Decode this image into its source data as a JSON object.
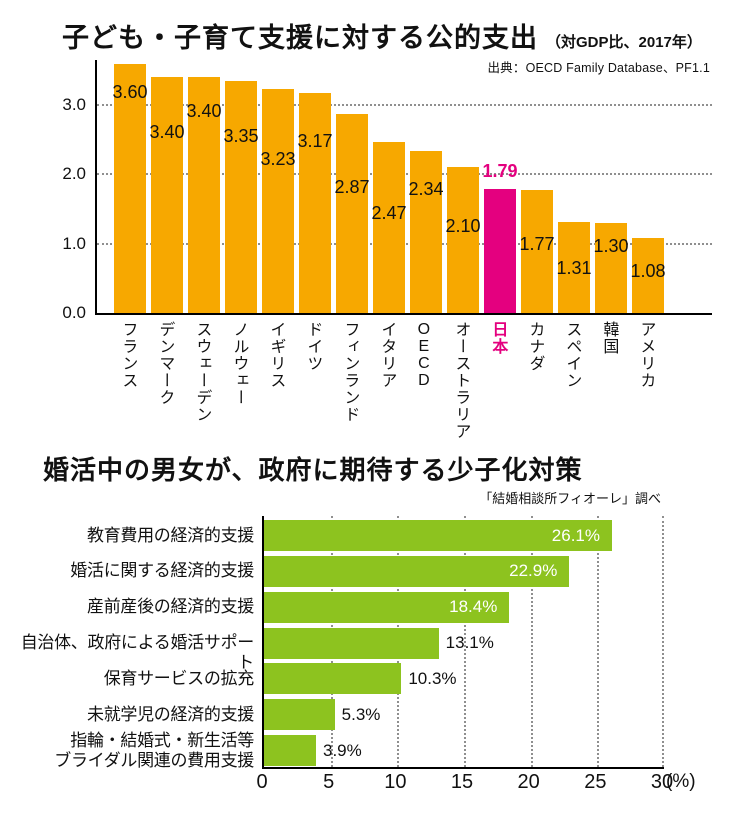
{
  "colors": {
    "bar_orange": "#F7A800",
    "bar_pink": "#E4007F",
    "bar_green": "#8DC31F",
    "grid_gray": "#8f8f8f",
    "text_black": "#111111",
    "value_white": "#ffffff"
  },
  "chart_data": [
    {
      "type": "bar",
      "title": "子ども・子育て支援に対する公的支出",
      "subtitle": "（対GDP比、2017年）",
      "source": "出典：OECD Family Database、PF1.1",
      "categories": [
        "フランス",
        "デンマーク",
        "スウェーデン",
        "ノルウェー",
        "イギリス",
        "ドイツ",
        "フィンランド",
        "イタリア",
        "OECD",
        "オーストラリア",
        "日本",
        "カナダ",
        "スペイン",
        "韓国",
        "アメリカ"
      ],
      "values": [
        3.6,
        3.4,
        3.4,
        3.35,
        3.23,
        3.17,
        2.87,
        2.47,
        2.34,
        2.1,
        1.79,
        1.77,
        1.31,
        1.3,
        1.08
      ],
      "value_labels": [
        "3.60",
        "3.40",
        "3.40",
        "3.35",
        "3.23",
        "3.17",
        "2.87",
        "2.47",
        "2.34",
        "2.10",
        "1.79",
        "1.77",
        "1.31",
        "1.30",
        "1.08"
      ],
      "highlight_index": 10,
      "highlight_label": "日本",
      "bar_color": "#F7A800",
      "highlight_color": "#E4007F",
      "ylim": [
        0.0,
        3.65
      ],
      "yticks": [
        "0.0",
        "1.0",
        "2.0",
        "3.0"
      ],
      "grid": "horizontal-dotted",
      "legend": "none",
      "label_dy": [
        27,
        54,
        33,
        54,
        69,
        47,
        72,
        70,
        37,
        58,
        -19,
        53,
        45,
        22,
        32
      ]
    },
    {
      "type": "bar",
      "orientation": "horizontal",
      "title": "婚活中の男女が、政府に期待する少子化対策",
      "source": "「結婚相談所フィオーレ」調べ",
      "categories": [
        "教育費用の経済的支援",
        "婚活に関する経済的支援",
        "産前産後の経済的支援",
        "自治体、政府による婚活サポート",
        "保育サービスの拡充",
        "未就学児の経済的支援",
        "指輪・結婚式・新生活等\nブライダル関連の費用支援"
      ],
      "values": [
        26.1,
        22.9,
        18.4,
        13.1,
        10.3,
        5.3,
        3.9
      ],
      "value_labels": [
        "26.1%",
        "22.9%",
        "18.4%",
        "13.1%",
        "10.3%",
        "5.3%",
        "3.9%"
      ],
      "label_inside": [
        true,
        true,
        true,
        false,
        false,
        false,
        false
      ],
      "bar_color": "#8DC31F",
      "xlim": [
        0,
        30
      ],
      "xticks": [
        "0",
        "5",
        "10",
        "15",
        "20",
        "25",
        "30"
      ],
      "x_unit": "(%)",
      "grid": "vertical-dotted",
      "legend": "none"
    }
  ]
}
